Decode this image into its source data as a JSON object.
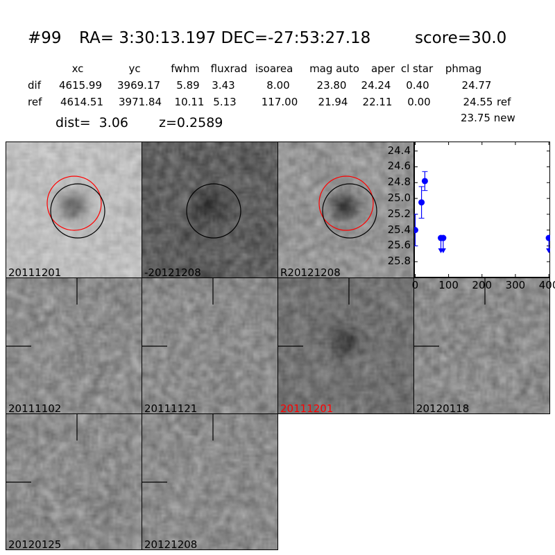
{
  "header": {
    "id": "#99",
    "coords": "RA= 3:30:13.197 DEC=-27:53:27.18",
    "score": "score=30.0"
  },
  "table": {
    "columns": [
      "xc",
      "yc",
      "fwhm",
      "fluxrad",
      "isoarea",
      "mag auto",
      "aper",
      "cl star",
      "phmag"
    ],
    "rows": [
      {
        "label": "dif",
        "values": [
          "4615.99",
          "3969.17",
          "5.89",
          "3.43",
          "8.00",
          "23.80",
          "24.24",
          "0.40",
          "24.77"
        ],
        "suffix": ""
      },
      {
        "label": "ref",
        "values": [
          "4614.51",
          "3971.84",
          "10.11",
          "5.13",
          "117.00",
          "21.94",
          "22.11",
          "0.00",
          "24.55"
        ],
        "suffix": "ref"
      }
    ],
    "new_mag": "23.75 new",
    "dist": "dist=  3.06",
    "z": "z=0.2589"
  },
  "panels": [
    {
      "label": "20111201",
      "label_color": "#000000",
      "style": "light",
      "circles": [
        "red",
        "black"
      ]
    },
    {
      "label": "-20121208",
      "label_color": "#000000",
      "style": "dark",
      "circles": [
        "black"
      ]
    },
    {
      "label": "R20121208",
      "label_color": "#000000",
      "style": "mid",
      "circles": [
        "red",
        "black"
      ]
    },
    {
      "label": "20111102",
      "label_color": "#000000",
      "style": "noise",
      "crosshair": true
    },
    {
      "label": "20111121",
      "label_color": "#000000",
      "style": "noise",
      "crosshair": true
    },
    {
      "label": "20111201",
      "label_color": "#ff0000",
      "style": "blob",
      "crosshair": true
    },
    {
      "label": "20120118",
      "label_color": "#000000",
      "style": "noise",
      "crosshair": true
    },
    {
      "label": "20120125",
      "label_color": "#000000",
      "style": "noise",
      "crosshair": true
    },
    {
      "label": "20121208",
      "label_color": "#000000",
      "style": "noise",
      "crosshair": true
    }
  ],
  "chart_data": {
    "type": "scatter",
    "xlim": [
      -3,
      404
    ],
    "ylim": [
      26.0,
      24.28
    ],
    "y_inverted": true,
    "xticks": [
      0,
      100,
      200,
      300,
      400
    ],
    "yticks": [
      24.4,
      24.6,
      24.8,
      25.0,
      25.2,
      25.4,
      25.6,
      25.8
    ],
    "color": "#0000ff",
    "points": [
      {
        "x": 0,
        "y": 25.4,
        "err": 0.2,
        "upper_limit": false
      },
      {
        "x": 19,
        "y": 25.05,
        "err": 0.2,
        "upper_limit": false
      },
      {
        "x": 29,
        "y": 24.78,
        "err": 0.12,
        "upper_limit": false
      },
      {
        "x": 77,
        "y": 25.5,
        "err": 0,
        "upper_limit": true
      },
      {
        "x": 84,
        "y": 25.5,
        "err": 0,
        "upper_limit": true
      },
      {
        "x": 400,
        "y": 25.5,
        "err": 0,
        "upper_limit": true
      }
    ]
  }
}
